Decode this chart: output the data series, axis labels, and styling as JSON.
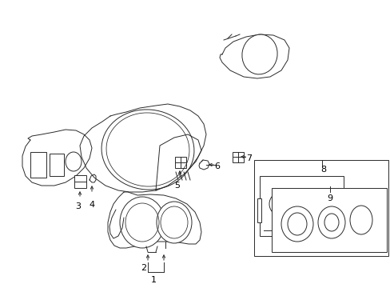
{
  "background_color": "#ffffff",
  "line_color": "#2a2a2a",
  "label_color": "#000000",
  "fig_width": 4.89,
  "fig_height": 3.6,
  "dpi": 100,
  "lw": 0.7
}
